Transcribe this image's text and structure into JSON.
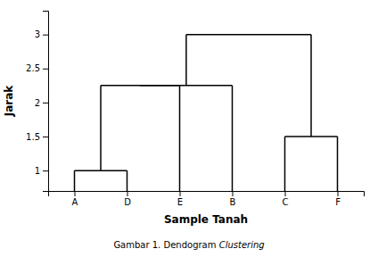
{
  "chart_data": {
    "type": "dendrogram",
    "xlabel": "Sample Tanah",
    "ylabel": "Jarak",
    "caption": [
      "Gambar 1. Dendogram ",
      "Clustering"
    ],
    "categories": [
      "A",
      "D",
      "E",
      "B",
      "C",
      "F"
    ],
    "clusters": [
      {
        "members": [
          "A",
          "D"
        ],
        "height": 1.0
      },
      {
        "members": [
          "C",
          "F"
        ],
        "height": 1.5
      },
      {
        "members": [
          "A",
          "D",
          "E"
        ],
        "height": 2.25
      },
      {
        "members": [
          "A",
          "D",
          "E",
          "B"
        ],
        "height": 2.25
      },
      {
        "members": [
          "A",
          "D",
          "E",
          "B",
          "C",
          "F"
        ],
        "height": 3.0
      }
    ],
    "color": "#000000",
    "ylim": [
      0.7,
      3.35
    ],
    "yticks": [
      1,
      1.5,
      2,
      2.5,
      3
    ],
    "grid": false
  }
}
